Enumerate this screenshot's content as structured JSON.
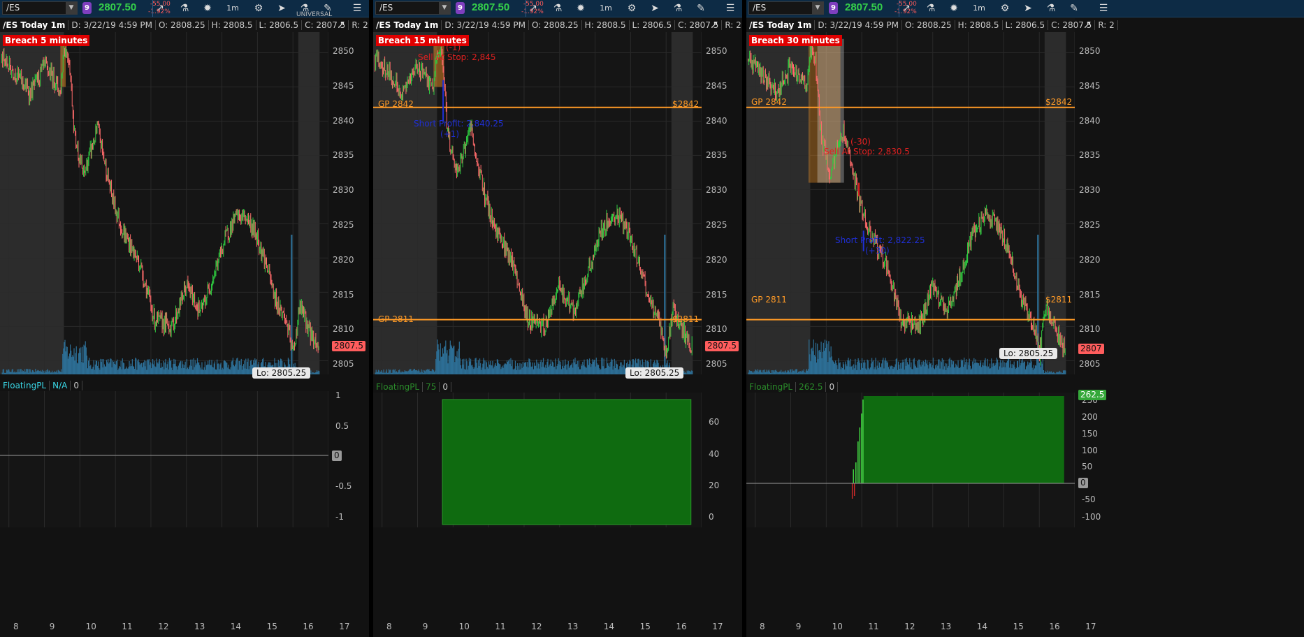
{
  "colors": {
    "up": "#2ecc40",
    "down": "#ff6b6b",
    "volume": "#2d6e95",
    "gp_line": "#ff9a26",
    "pl_fill": "#0f6b10",
    "grid": "#2a2a2a",
    "shade": "#3a3a3a"
  },
  "panels": [
    {
      "symbol": "/ES",
      "badge": "9",
      "price": "2807.50",
      "change": "-55.00",
      "change_pct": "-1.92%",
      "info": {
        "title": "/ES Today 1m",
        "date": "D: 3/22/19 4:59 PM",
        "open": "O: 2808.25",
        "high": "H: 2808.5",
        "low": "L: 2806.5",
        "close": "C: 2807.5",
        "range": "R: 2"
      },
      "breach": "Breach 5 minutes",
      "price_tag": "2807.5",
      "lo_tag": "Lo: 2805.25",
      "sub": {
        "name": "FloatingPL",
        "value": "N/A",
        "count": "0"
      },
      "sub_yticks": [
        "1",
        "0.5",
        "0",
        "-0.5",
        "-1"
      ],
      "overlay_text": "UNIVERSAL"
    },
    {
      "symbol": "/ES",
      "badge": "9",
      "price": "2807.50",
      "change": "-55.00",
      "change_pct": "-1.92%",
      "info": {
        "title": "/ES Today 1m",
        "date": "D: 3/22/19 4:59 PM",
        "open": "O: 2808.25",
        "high": "H: 2808.5",
        "low": "L: 2806.5",
        "close": "C: 2807.5",
        "range": "R: 2",
        "more": "..."
      },
      "breach": "Breach 15 minutes",
      "price_tag": "2807.5",
      "lo_tag": "Lo: 2805.25",
      "gp_upper": "GP 2842",
      "gp_upper_right": "$2842",
      "gp_lower": "GP 2811",
      "gp_lower_right": "$2811",
      "sell_label": "Sell At Stop: 2,845",
      "sell_tag": "(-1)",
      "short_label": "Short Profit: 2,840.25",
      "short_tag": "(+1)",
      "sub": {
        "name": "FloatingPL",
        "value": "75",
        "count": "0"
      },
      "sub_yticks": [
        "60",
        "40",
        "20",
        "0"
      ]
    },
    {
      "symbol": "/ES",
      "badge": "9",
      "price": "2807.50",
      "change": "-55.00",
      "change_pct": "-1.92%",
      "info": {
        "title": "/ES Today 1m",
        "date": "D: 3/22/19 4:59 PM",
        "open": "O: 2808.25",
        "high": "H: 2808.5",
        "low": "L: 2806.5",
        "close": "C: 2807.5",
        "range": "R: 2"
      },
      "breach": "Breach 30 minutes",
      "price_tag": "2807",
      "lo_tag": "Lo: 2805.25",
      "gp_upper": "GP 2842",
      "gp_upper_right": "$2842",
      "gp_lower": "GP 2811",
      "gp_lower_right": "$2811",
      "sell_label": "Sell At Stop: 2,830.5",
      "sell_tag": "(-30)",
      "short_label": "Short Profit: 2,822.25",
      "short_tag": "(+30)",
      "sub": {
        "name": "FloatingPL",
        "value": "262.5",
        "count": "0"
      },
      "sub_yticks": [
        "250",
        "200",
        "150",
        "100",
        "50",
        "0",
        "-50",
        "-100"
      ],
      "sub_green_tag": "262.5"
    }
  ],
  "yticks": [
    "2850",
    "2845",
    "2840",
    "2835",
    "2830",
    "2825",
    "2820",
    "2815",
    "2810",
    "2805"
  ],
  "xticks": [
    "8",
    "9",
    "10",
    "11",
    "12",
    "13",
    "14",
    "15",
    "16",
    "17"
  ],
  "toolbar": {
    "interval": "1m"
  },
  "chart_data": [
    {
      "type": "candlestick",
      "title": "/ES Today 1m",
      "ylim": [
        2803,
        2853
      ],
      "x_range_hours": [
        7.75,
        17.0
      ],
      "shaded_session": [
        [
          7.75,
          9.5
        ],
        [
          16.15,
          16.75
        ]
      ],
      "series": [
        {
          "name": "/ES",
          "path_hours": [
            7.8,
            8.2,
            8.6,
            9.0,
            9.3,
            9.45,
            9.55,
            9.7,
            9.85,
            10.1,
            10.5,
            10.9,
            11.2,
            11.7,
            12.1,
            12.6,
            13.0,
            13.4,
            13.8,
            14.1,
            14.4,
            14.7,
            15.0,
            15.25,
            15.5,
            15.8,
            16.0,
            16.2,
            16.5,
            16.7
          ],
          "path_values": [
            2849,
            2847,
            2844,
            2848,
            2846,
            2844,
            2851,
            2849,
            2838,
            2832,
            2839,
            2829,
            2824,
            2819,
            2811,
            2810,
            2816,
            2812,
            2818,
            2823,
            2826,
            2826,
            2823,
            2819,
            2814,
            2811,
            2806,
            2813,
            2809,
            2807
          ]
        }
      ],
      "guide_lines": []
    },
    {
      "type": "candlestick",
      "title": "/ES Today 1m",
      "ylim": [
        2803,
        2853
      ],
      "x_range_hours": [
        7.75,
        17.0
      ],
      "series": [
        {
          "name": "/ES",
          "path_hours": [
            7.8,
            8.2,
            8.6,
            9.0,
            9.3,
            9.45,
            9.55,
            9.7,
            9.85,
            10.1,
            10.5,
            10.9,
            11.2,
            11.7,
            12.1,
            12.6,
            13.0,
            13.4,
            13.8,
            14.1,
            14.4,
            14.7,
            15.0,
            15.25,
            15.5,
            15.8,
            16.0,
            16.2,
            16.5,
            16.7
          ],
          "path_values": [
            2849,
            2847,
            2844,
            2848,
            2846,
            2844,
            2851,
            2849,
            2838,
            2832,
            2839,
            2829,
            2824,
            2819,
            2811,
            2810,
            2816,
            2812,
            2818,
            2823,
            2826,
            2826,
            2823,
            2819,
            2814,
            2811,
            2806,
            2813,
            2809,
            2807
          ]
        }
      ],
      "guide_lines": [
        2842,
        2811
      ],
      "floating_pl": {
        "start_hour": 9.7,
        "end_hour": 16.7,
        "value": 75
      }
    },
    {
      "type": "candlestick",
      "title": "/ES Today 1m",
      "ylim": [
        2803,
        2853
      ],
      "x_range_hours": [
        7.75,
        17.0
      ],
      "series": [
        {
          "name": "/ES",
          "path_hours": [
            7.8,
            8.2,
            8.6,
            9.0,
            9.3,
            9.45,
            9.55,
            9.7,
            9.85,
            10.1,
            10.5,
            10.9,
            11.2,
            11.7,
            12.1,
            12.6,
            13.0,
            13.4,
            13.8,
            14.1,
            14.4,
            14.7,
            15.0,
            15.25,
            15.5,
            15.8,
            16.0,
            16.2,
            16.5,
            16.7
          ],
          "path_values": [
            2849,
            2847,
            2844,
            2848,
            2846,
            2844,
            2851,
            2849,
            2838,
            2832,
            2839,
            2829,
            2824,
            2819,
            2811,
            2810,
            2816,
            2812,
            2818,
            2823,
            2826,
            2826,
            2823,
            2819,
            2814,
            2811,
            2806,
            2813,
            2809,
            2807
          ]
        }
      ],
      "guide_lines": [
        2842,
        2811
      ],
      "floating_pl": {
        "start_hour": 10.9,
        "end_hour": 16.7,
        "value": 262.5
      }
    }
  ]
}
